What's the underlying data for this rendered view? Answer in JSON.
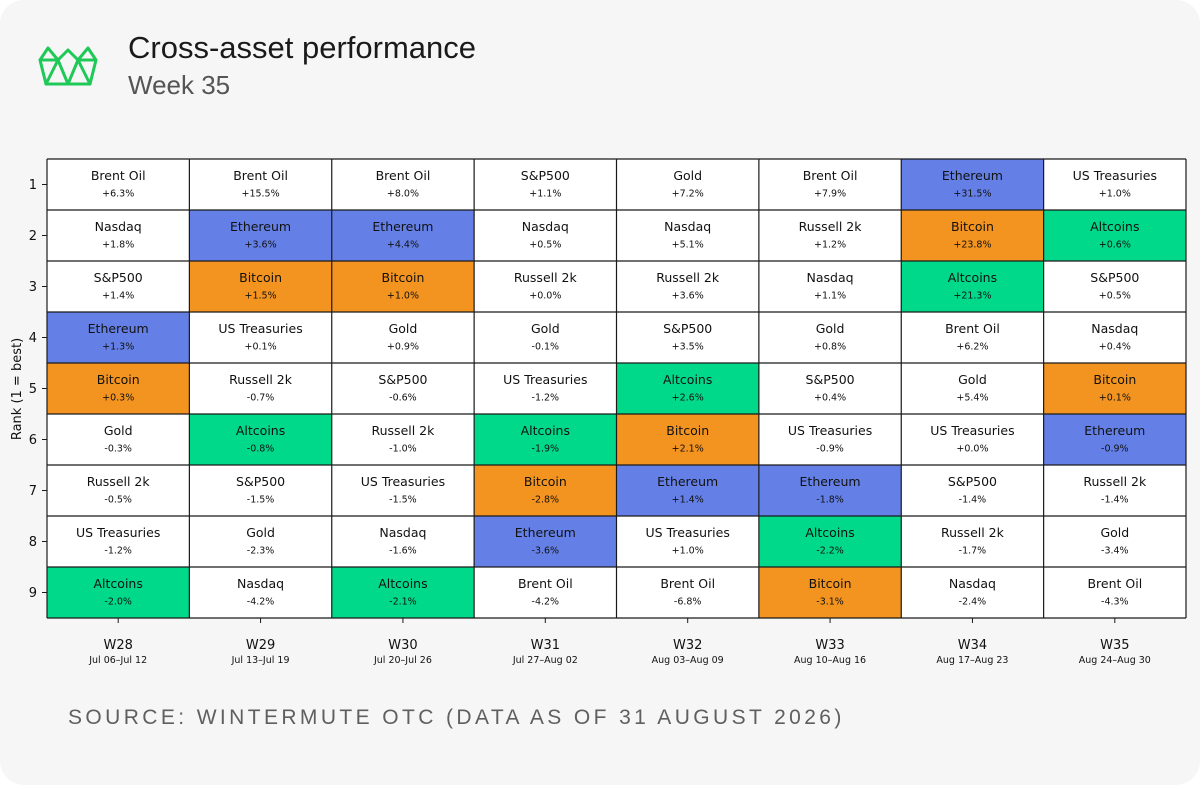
{
  "header": {
    "title": "Cross-asset performance",
    "subtitle": "Week 35"
  },
  "footer": {
    "source": "SOURCE: WINTERMUTE OTC (DATA AS OF 31 AUGUST 2026)"
  },
  "colors": {
    "logo": "#1ec957",
    "Ethereum": "#6480e6",
    "Bitcoin": "#f39420",
    "Altcoins": "#00d88a",
    "default": "#ffffff",
    "grid": "#1a1a1a"
  },
  "chart_data": {
    "type": "table",
    "ylabel": "Rank (1 = best)",
    "ranks": [
      "1",
      "2",
      "3",
      "4",
      "5",
      "6",
      "7",
      "8",
      "9"
    ],
    "weeks": [
      {
        "week": "W28",
        "dates": "Jul 06–Jul 12",
        "entries": [
          {
            "asset": "Brent Oil",
            "change": "+6.3%"
          },
          {
            "asset": "Nasdaq",
            "change": "+1.8%"
          },
          {
            "asset": "S&P500",
            "change": "+1.4%"
          },
          {
            "asset": "Ethereum",
            "change": "+1.3%"
          },
          {
            "asset": "Bitcoin",
            "change": "+0.3%"
          },
          {
            "asset": "Gold",
            "change": "-0.3%"
          },
          {
            "asset": "Russell 2k",
            "change": "-0.5%"
          },
          {
            "asset": "US Treasuries",
            "change": "-1.2%"
          },
          {
            "asset": "Altcoins",
            "change": "-2.0%"
          }
        ]
      },
      {
        "week": "W29",
        "dates": "Jul 13–Jul 19",
        "entries": [
          {
            "asset": "Brent Oil",
            "change": "+15.5%"
          },
          {
            "asset": "Ethereum",
            "change": "+3.6%"
          },
          {
            "asset": "Bitcoin",
            "change": "+1.5%"
          },
          {
            "asset": "US Treasuries",
            "change": "+0.1%"
          },
          {
            "asset": "Russell 2k",
            "change": "-0.7%"
          },
          {
            "asset": "Altcoins",
            "change": "-0.8%"
          },
          {
            "asset": "S&P500",
            "change": "-1.5%"
          },
          {
            "asset": "Gold",
            "change": "-2.3%"
          },
          {
            "asset": "Nasdaq",
            "change": "-4.2%"
          }
        ]
      },
      {
        "week": "W30",
        "dates": "Jul 20–Jul 26",
        "entries": [
          {
            "asset": "Brent Oil",
            "change": "+8.0%"
          },
          {
            "asset": "Ethereum",
            "change": "+4.4%"
          },
          {
            "asset": "Bitcoin",
            "change": "+1.0%"
          },
          {
            "asset": "Gold",
            "change": "+0.9%"
          },
          {
            "asset": "S&P500",
            "change": "-0.6%"
          },
          {
            "asset": "Russell 2k",
            "change": "-1.0%"
          },
          {
            "asset": "US Treasuries",
            "change": "-1.5%"
          },
          {
            "asset": "Nasdaq",
            "change": "-1.6%"
          },
          {
            "asset": "Altcoins",
            "change": "-2.1%"
          }
        ]
      },
      {
        "week": "W31",
        "dates": "Jul 27–Aug 02",
        "entries": [
          {
            "asset": "S&P500",
            "change": "+1.1%"
          },
          {
            "asset": "Nasdaq",
            "change": "+0.5%"
          },
          {
            "asset": "Russell 2k",
            "change": "+0.0%"
          },
          {
            "asset": "Gold",
            "change": "-0.1%"
          },
          {
            "asset": "US Treasuries",
            "change": "-1.2%"
          },
          {
            "asset": "Altcoins",
            "change": "-1.9%"
          },
          {
            "asset": "Bitcoin",
            "change": "-2.8%"
          },
          {
            "asset": "Ethereum",
            "change": "-3.6%"
          },
          {
            "asset": "Brent Oil",
            "change": "-4.2%"
          }
        ]
      },
      {
        "week": "W32",
        "dates": "Aug 03–Aug 09",
        "entries": [
          {
            "asset": "Gold",
            "change": "+7.2%"
          },
          {
            "asset": "Nasdaq",
            "change": "+5.1%"
          },
          {
            "asset": "Russell 2k",
            "change": "+3.6%"
          },
          {
            "asset": "S&P500",
            "change": "+3.5%"
          },
          {
            "asset": "Altcoins",
            "change": "+2.6%"
          },
          {
            "asset": "Bitcoin",
            "change": "+2.1%"
          },
          {
            "asset": "Ethereum",
            "change": "+1.4%"
          },
          {
            "asset": "US Treasuries",
            "change": "+1.0%"
          },
          {
            "asset": "Brent Oil",
            "change": "-6.8%"
          }
        ]
      },
      {
        "week": "W33",
        "dates": "Aug 10–Aug 16",
        "entries": [
          {
            "asset": "Brent Oil",
            "change": "+7.9%"
          },
          {
            "asset": "Russell 2k",
            "change": "+1.2%"
          },
          {
            "asset": "Nasdaq",
            "change": "+1.1%"
          },
          {
            "asset": "Gold",
            "change": "+0.8%"
          },
          {
            "asset": "S&P500",
            "change": "+0.4%"
          },
          {
            "asset": "US Treasuries",
            "change": "-0.9%"
          },
          {
            "asset": "Ethereum",
            "change": "-1.8%"
          },
          {
            "asset": "Altcoins",
            "change": "-2.2%"
          },
          {
            "asset": "Bitcoin",
            "change": "-3.1%"
          }
        ]
      },
      {
        "week": "W34",
        "dates": "Aug 17–Aug 23",
        "entries": [
          {
            "asset": "Ethereum",
            "change": "+31.5%"
          },
          {
            "asset": "Bitcoin",
            "change": "+23.8%"
          },
          {
            "asset": "Altcoins",
            "change": "+21.3%"
          },
          {
            "asset": "Brent Oil",
            "change": "+6.2%"
          },
          {
            "asset": "Gold",
            "change": "+5.4%"
          },
          {
            "asset": "US Treasuries",
            "change": "+0.0%"
          },
          {
            "asset": "S&P500",
            "change": "-1.4%"
          },
          {
            "asset": "Russell 2k",
            "change": "-1.7%"
          },
          {
            "asset": "Nasdaq",
            "change": "-2.4%"
          }
        ]
      },
      {
        "week": "W35",
        "dates": "Aug 24–Aug 30",
        "entries": [
          {
            "asset": "US Treasuries",
            "change": "+1.0%"
          },
          {
            "asset": "Altcoins",
            "change": "+0.6%"
          },
          {
            "asset": "S&P500",
            "change": "+0.5%"
          },
          {
            "asset": "Nasdaq",
            "change": "+0.4%"
          },
          {
            "asset": "Bitcoin",
            "change": "+0.1%"
          },
          {
            "asset": "Ethereum",
            "change": "-0.9%"
          },
          {
            "asset": "Russell 2k",
            "change": "-1.4%"
          },
          {
            "asset": "Gold",
            "change": "-3.4%"
          },
          {
            "asset": "Brent Oil",
            "change": "-4.3%"
          }
        ]
      }
    ]
  }
}
